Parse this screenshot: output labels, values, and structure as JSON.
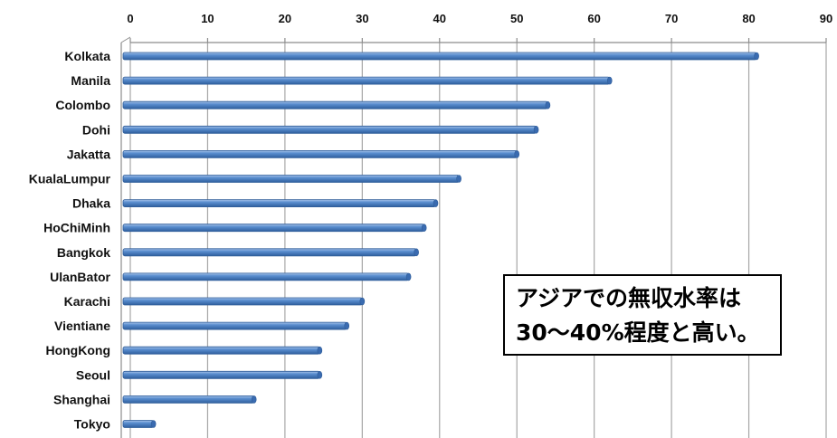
{
  "chart_data": {
    "type": "bar",
    "orientation": "horizontal",
    "categories": [
      "Kolkata",
      "Manila",
      "Colombo",
      "Dohi",
      "Jakatta",
      "KualaLumpur",
      "Dhaka",
      "HoChiMinh",
      "Bangkok",
      "UlanBator",
      "Karachi",
      "Vientiane",
      "HongKong",
      "Seoul",
      "Shanghai",
      "Tokyo"
    ],
    "values": [
      81,
      62,
      54,
      52.5,
      50,
      42.5,
      39.5,
      38,
      37,
      36,
      30,
      28,
      24.5,
      24.5,
      16,
      3
    ],
    "xlim": [
      0,
      90
    ],
    "xticks": [
      "0",
      "10",
      "20",
      "30",
      "40",
      "50",
      "60",
      "70",
      "80",
      "90"
    ],
    "x_axis_position": "top",
    "grid": true,
    "bar_color": "#4f81bd",
    "annotation": {
      "line1": "アジアでの無収水率は",
      "line2": "30～40%程度と高い。"
    }
  }
}
